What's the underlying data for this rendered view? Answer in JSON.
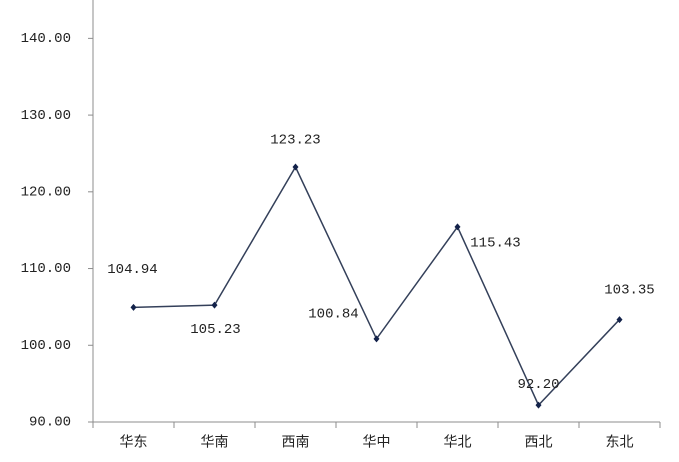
{
  "chart_data": {
    "type": "line",
    "categories": [
      "华东",
      "华南",
      "西南",
      "华中",
      "华北",
      "西北",
      "东北"
    ],
    "series": [
      {
        "color": "#34405a",
        "values": [
          104.94,
          105.23,
          123.23,
          100.84,
          115.43,
          92.2,
          103.35
        ],
        "value_labels": [
          "104.94",
          "105.23",
          "123.23",
          "100.84",
          "115.43",
          "92.20",
          "103.35"
        ]
      }
    ],
    "ylim": [
      90,
      145
    ],
    "yticks": [
      {
        "value": 90,
        "label": "90.00"
      },
      {
        "value": 100,
        "label": "100.00"
      },
      {
        "value": 110,
        "label": "110.00"
      },
      {
        "value": 120,
        "label": "120.00"
      },
      {
        "value": 130,
        "label": "130.00"
      },
      {
        "value": 140,
        "label": "140.00"
      }
    ]
  }
}
